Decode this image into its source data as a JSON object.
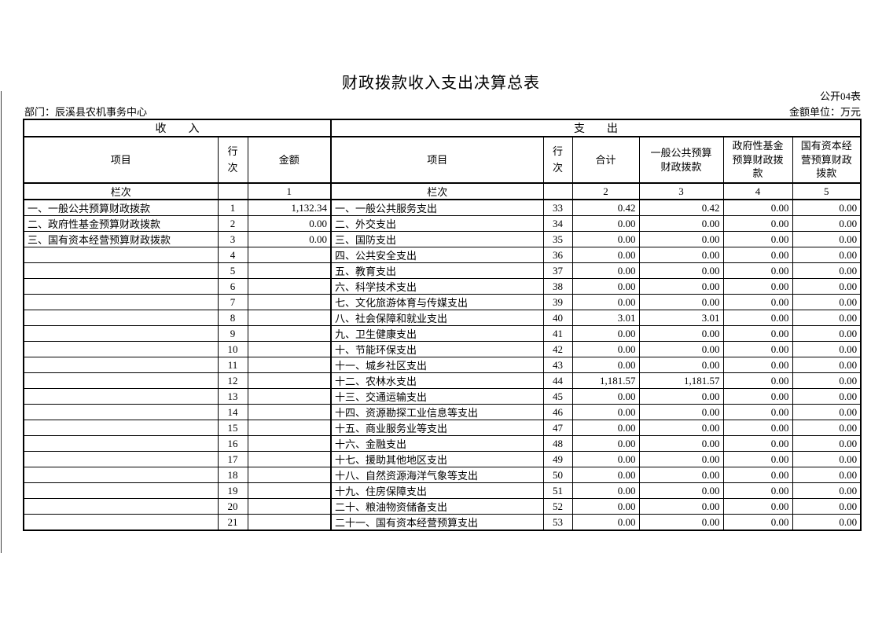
{
  "page": {
    "title": "财政拨款收入支出决算总表",
    "table_code": "公开04表",
    "department": "部门：辰溪县农机事务中心",
    "unit_label": "金额单位：万元"
  },
  "colors": {
    "text": "#000000",
    "border": "#000000",
    "background": "#ffffff"
  },
  "table": {
    "sections": {
      "revenue": "收　　入",
      "expenditure": "支　　出"
    },
    "headers": {
      "item": "项目",
      "line_no": "行次",
      "amount": "金额",
      "total": "合计",
      "general_budget": "一般公共预算财政拨款",
      "gov_fund": "政府性基金预算财政拨款",
      "state_capital": "国有资本经营预算财政拨款",
      "column_label": "栏次",
      "col_nums": [
        "1",
        "2",
        "3",
        "4",
        "5"
      ]
    },
    "rows": [
      {
        "rev_item": "一、一般公共预算财政拨款",
        "rev_no": "1",
        "rev_amt": "1,132.34",
        "exp_item": "一、一般公共服务支出",
        "exp_no": "33",
        "exp_total": "0.42",
        "exp_general": "0.42",
        "exp_fund": "0.00",
        "exp_capital": "0.00"
      },
      {
        "rev_item": "二、政府性基金预算财政拨款",
        "rev_no": "2",
        "rev_amt": "0.00",
        "exp_item": "二、外交支出",
        "exp_no": "34",
        "exp_total": "0.00",
        "exp_general": "0.00",
        "exp_fund": "0.00",
        "exp_capital": "0.00"
      },
      {
        "rev_item": "三、国有资本经营预算财政拨款",
        "rev_no": "3",
        "rev_amt": "0.00",
        "exp_item": "三、国防支出",
        "exp_no": "35",
        "exp_total": "0.00",
        "exp_general": "0.00",
        "exp_fund": "0.00",
        "exp_capital": "0.00"
      },
      {
        "rev_item": "",
        "rev_no": "4",
        "rev_amt": "",
        "exp_item": "四、公共安全支出",
        "exp_no": "36",
        "exp_total": "0.00",
        "exp_general": "0.00",
        "exp_fund": "0.00",
        "exp_capital": "0.00"
      },
      {
        "rev_item": "",
        "rev_no": "5",
        "rev_amt": "",
        "exp_item": "五、教育支出",
        "exp_no": "37",
        "exp_total": "0.00",
        "exp_general": "0.00",
        "exp_fund": "0.00",
        "exp_capital": "0.00"
      },
      {
        "rev_item": "",
        "rev_no": "6",
        "rev_amt": "",
        "exp_item": "六、科学技术支出",
        "exp_no": "38",
        "exp_total": "0.00",
        "exp_general": "0.00",
        "exp_fund": "0.00",
        "exp_capital": "0.00"
      },
      {
        "rev_item": "",
        "rev_no": "7",
        "rev_amt": "",
        "exp_item": "七、文化旅游体育与传媒支出",
        "exp_no": "39",
        "exp_total": "0.00",
        "exp_general": "0.00",
        "exp_fund": "0.00",
        "exp_capital": "0.00"
      },
      {
        "rev_item": "",
        "rev_no": "8",
        "rev_amt": "",
        "exp_item": "八、社会保障和就业支出",
        "exp_no": "40",
        "exp_total": "3.01",
        "exp_general": "3.01",
        "exp_fund": "0.00",
        "exp_capital": "0.00"
      },
      {
        "rev_item": "",
        "rev_no": "9",
        "rev_amt": "",
        "exp_item": "九、卫生健康支出",
        "exp_no": "41",
        "exp_total": "0.00",
        "exp_general": "0.00",
        "exp_fund": "0.00",
        "exp_capital": "0.00"
      },
      {
        "rev_item": "",
        "rev_no": "10",
        "rev_amt": "",
        "exp_item": "十、节能环保支出",
        "exp_no": "42",
        "exp_total": "0.00",
        "exp_general": "0.00",
        "exp_fund": "0.00",
        "exp_capital": "0.00"
      },
      {
        "rev_item": "",
        "rev_no": "11",
        "rev_amt": "",
        "exp_item": "十一、城乡社区支出",
        "exp_no": "43",
        "exp_total": "0.00",
        "exp_general": "0.00",
        "exp_fund": "0.00",
        "exp_capital": "0.00"
      },
      {
        "rev_item": "",
        "rev_no": "12",
        "rev_amt": "",
        "exp_item": "十二、农林水支出",
        "exp_no": "44",
        "exp_total": "1,181.57",
        "exp_general": "1,181.57",
        "exp_fund": "0.00",
        "exp_capital": "0.00"
      },
      {
        "rev_item": "",
        "rev_no": "13",
        "rev_amt": "",
        "exp_item": "十三、交通运输支出",
        "exp_no": "45",
        "exp_total": "0.00",
        "exp_general": "0.00",
        "exp_fund": "0.00",
        "exp_capital": "0.00"
      },
      {
        "rev_item": "",
        "rev_no": "14",
        "rev_amt": "",
        "exp_item": "十四、资源勘探工业信息等支出",
        "exp_no": "46",
        "exp_total": "0.00",
        "exp_general": "0.00",
        "exp_fund": "0.00",
        "exp_capital": "0.00"
      },
      {
        "rev_item": "",
        "rev_no": "15",
        "rev_amt": "",
        "exp_item": "十五、商业服务业等支出",
        "exp_no": "47",
        "exp_total": "0.00",
        "exp_general": "0.00",
        "exp_fund": "0.00",
        "exp_capital": "0.00"
      },
      {
        "rev_item": "",
        "rev_no": "16",
        "rev_amt": "",
        "exp_item": "十六、金融支出",
        "exp_no": "48",
        "exp_total": "0.00",
        "exp_general": "0.00",
        "exp_fund": "0.00",
        "exp_capital": "0.00"
      },
      {
        "rev_item": "",
        "rev_no": "17",
        "rev_amt": "",
        "exp_item": "十七、援助其他地区支出",
        "exp_no": "49",
        "exp_total": "0.00",
        "exp_general": "0.00",
        "exp_fund": "0.00",
        "exp_capital": "0.00"
      },
      {
        "rev_item": "",
        "rev_no": "18",
        "rev_amt": "",
        "exp_item": "十八、自然资源海洋气象等支出",
        "exp_no": "50",
        "exp_total": "0.00",
        "exp_general": "0.00",
        "exp_fund": "0.00",
        "exp_capital": "0.00"
      },
      {
        "rev_item": "",
        "rev_no": "19",
        "rev_amt": "",
        "exp_item": "十九、住房保障支出",
        "exp_no": "51",
        "exp_total": "0.00",
        "exp_general": "0.00",
        "exp_fund": "0.00",
        "exp_capital": "0.00"
      },
      {
        "rev_item": "",
        "rev_no": "20",
        "rev_amt": "",
        "exp_item": "二十、粮油物资储备支出",
        "exp_no": "52",
        "exp_total": "0.00",
        "exp_general": "0.00",
        "exp_fund": "0.00",
        "exp_capital": "0.00"
      },
      {
        "rev_item": "",
        "rev_no": "21",
        "rev_amt": "",
        "exp_item": "二十一、国有资本经营预算支出",
        "exp_no": "53",
        "exp_total": "0.00",
        "exp_general": "0.00",
        "exp_fund": "0.00",
        "exp_capital": "0.00"
      }
    ]
  }
}
